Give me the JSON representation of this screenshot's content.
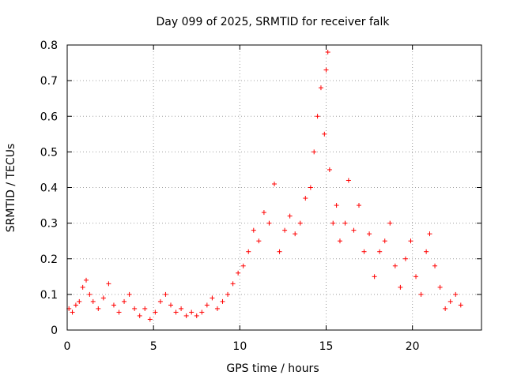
{
  "chart_data": {
    "type": "scatter",
    "title": "Day 099 of 2025, SRMTID for receiver falk",
    "xlabel": "GPS time / hours",
    "ylabel": "SRMTID / TECUs",
    "xlim": [
      0,
      24
    ],
    "ylim": [
      0,
      0.8
    ],
    "xticks": [
      0,
      5,
      10,
      15,
      20
    ],
    "xtick_labels": [
      "0",
      "5",
      "10",
      "15",
      "20"
    ],
    "yticks": [
      0,
      0.1,
      0.2,
      0.3,
      0.4,
      0.5,
      0.6,
      0.7,
      0.8
    ],
    "ytick_labels": [
      "0",
      "0.1",
      "0.2",
      "0.3",
      "0.4",
      "0.5",
      "0.6",
      "0.7",
      "0.8"
    ],
    "grid": true,
    "marker": "+",
    "color": "#ff0000",
    "series": [
      {
        "name": "SRMTID",
        "points": [
          [
            0.1,
            0.06
          ],
          [
            0.3,
            0.05
          ],
          [
            0.5,
            0.07
          ],
          [
            0.7,
            0.08
          ],
          [
            0.9,
            0.12
          ],
          [
            1.1,
            0.14
          ],
          [
            1.3,
            0.1
          ],
          [
            1.5,
            0.08
          ],
          [
            1.8,
            0.06
          ],
          [
            2.1,
            0.09
          ],
          [
            2.4,
            0.13
          ],
          [
            2.7,
            0.07
          ],
          [
            3.0,
            0.05
          ],
          [
            3.3,
            0.08
          ],
          [
            3.6,
            0.1
          ],
          [
            3.9,
            0.06
          ],
          [
            4.2,
            0.04
          ],
          [
            4.5,
            0.06
          ],
          [
            4.8,
            0.03
          ],
          [
            5.1,
            0.05
          ],
          [
            5.4,
            0.08
          ],
          [
            5.7,
            0.1
          ],
          [
            6.0,
            0.07
          ],
          [
            6.3,
            0.05
          ],
          [
            6.6,
            0.06
          ],
          [
            6.9,
            0.04
          ],
          [
            7.2,
            0.05
          ],
          [
            7.5,
            0.04
          ],
          [
            7.8,
            0.05
          ],
          [
            8.1,
            0.07
          ],
          [
            8.4,
            0.09
          ],
          [
            8.7,
            0.06
          ],
          [
            9.0,
            0.08
          ],
          [
            9.3,
            0.1
          ],
          [
            9.6,
            0.13
          ],
          [
            9.9,
            0.16
          ],
          [
            10.2,
            0.18
          ],
          [
            10.5,
            0.22
          ],
          [
            10.8,
            0.28
          ],
          [
            11.1,
            0.25
          ],
          [
            11.4,
            0.33
          ],
          [
            11.7,
            0.3
          ],
          [
            12.0,
            0.41
          ],
          [
            12.3,
            0.22
          ],
          [
            12.6,
            0.28
          ],
          [
            12.9,
            0.32
          ],
          [
            13.2,
            0.27
          ],
          [
            13.5,
            0.3
          ],
          [
            13.8,
            0.37
          ],
          [
            14.1,
            0.4
          ],
          [
            14.3,
            0.5
          ],
          [
            14.5,
            0.6
          ],
          [
            14.7,
            0.68
          ],
          [
            14.9,
            0.55
          ],
          [
            15.0,
            0.73
          ],
          [
            15.1,
            0.78
          ],
          [
            15.2,
            0.45
          ],
          [
            15.4,
            0.3
          ],
          [
            15.6,
            0.35
          ],
          [
            15.8,
            0.25
          ],
          [
            16.1,
            0.3
          ],
          [
            16.3,
            0.42
          ],
          [
            16.6,
            0.28
          ],
          [
            16.9,
            0.35
          ],
          [
            17.2,
            0.22
          ],
          [
            17.5,
            0.27
          ],
          [
            17.8,
            0.15
          ],
          [
            18.1,
            0.22
          ],
          [
            18.4,
            0.25
          ],
          [
            18.7,
            0.3
          ],
          [
            19.0,
            0.18
          ],
          [
            19.3,
            0.12
          ],
          [
            19.6,
            0.2
          ],
          [
            19.9,
            0.25
          ],
          [
            20.2,
            0.15
          ],
          [
            20.5,
            0.1
          ],
          [
            20.8,
            0.22
          ],
          [
            21.0,
            0.27
          ],
          [
            21.3,
            0.18
          ],
          [
            21.6,
            0.12
          ],
          [
            21.9,
            0.06
          ],
          [
            22.2,
            0.08
          ],
          [
            22.5,
            0.1
          ],
          [
            22.8,
            0.07
          ]
        ]
      }
    ]
  }
}
